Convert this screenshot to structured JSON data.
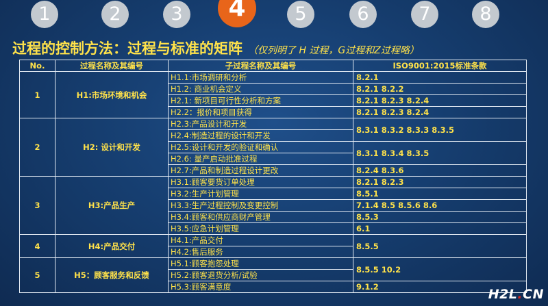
{
  "steps": [
    "1",
    "2",
    "3",
    "4",
    "5",
    "6",
    "7",
    "8"
  ],
  "active_step": "4",
  "heading": {
    "title": "过程的控制方法：过程与标准的矩阵",
    "note": "（仅列明了 H 过程，G过程和Z过程略）"
  },
  "table": {
    "headers": [
      "No.",
      "过程名称及其编号",
      "子过程名称及其编号",
      "ISO9001:2015标准条款"
    ],
    "groups": [
      {
        "no": "1",
        "name": "H1:市场环境和机会"
      },
      {
        "no": "2",
        "name": "H2: 设计和开发"
      },
      {
        "no": "3",
        "name": "H3:产品生产"
      },
      {
        "no": "4",
        "name": "H4:产品交付"
      },
      {
        "no": "5",
        "name": "H5：顾客服务和反馈"
      }
    ],
    "subs": [
      "H1.1:市场调研和分析",
      "H1.2: 商业机会定义",
      "H2.1: 新项目可行性分析和方案",
      "H2.2：报价和项目获得",
      "H2.3:产品设计和开发",
      "H2.4:制造过程的设计和开发",
      "H2.5:设计和开发的验证和确认",
      "H2.6: 量产启动批准过程",
      "H2.7:产品和制造过程设计更改",
      "H3.1:顾客要货订单处理",
      "H3.2:生产计划管理",
      "H3.3:生产过程控制及变更控制",
      "H3.4:顾客和供应商财产管理",
      "H3.5:应急计划管理",
      "H4.1:产品交付",
      "H4.2:售后服务",
      "H5.1:顾客抱怨处理",
      "H5.2:顾客退货分析/试验",
      "H5.3:顾客满意度"
    ],
    "iso": [
      "8.2.1",
      "8.2.1 8.2.2",
      "8.2.1 8.2.3 8.2.4",
      "8.2.1 8.2.3 8.2.4",
      "8.3.1 8.3.2 8.3.3 8.3.5",
      "8.3.1 8.3.4 8.3.5",
      "8.2.4 8.3.6",
      "8.2.1 8.2.3",
      "8.5.1",
      "7.1.4 8.5 8.5.6 8.6",
      "8.5.3",
      "6.1",
      "8.5.5",
      "8.5.5 10.2",
      "9.1.2"
    ]
  },
  "watermark": {
    "brand": "H2L",
    "dot": ".",
    "tld": "CN"
  }
}
